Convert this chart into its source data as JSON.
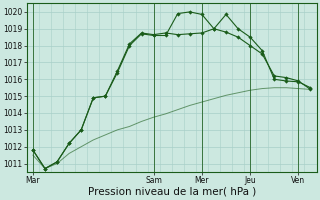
{
  "title": "",
  "xlabel": "Pression niveau de la mer( hPa )",
  "background_color": "#cce8e0",
  "grid_color": "#a8cfc8",
  "line_color_dark": "#1a5c1a",
  "ylim": [
    1010.5,
    1020.5
  ],
  "yticks": [
    1011,
    1012,
    1013,
    1014,
    1015,
    1016,
    1017,
    1018,
    1019,
    1020
  ],
  "day_labels": [
    "Mar",
    "Sam",
    "Mer",
    "Jeu",
    "Ven"
  ],
  "day_x_positions": [
    0,
    10,
    14,
    18,
    22
  ],
  "xlim": [
    -0.5,
    23.5
  ],
  "series1_x": [
    0,
    1,
    2,
    3,
    4,
    5,
    6,
    7,
    8,
    9,
    10,
    11,
    12,
    13,
    14,
    15,
    16,
    17,
    18,
    19,
    20,
    21,
    22,
    23
  ],
  "series1_y": [
    1011.8,
    1010.7,
    1011.1,
    1012.2,
    1013.0,
    1014.9,
    1015.0,
    1016.5,
    1018.1,
    1018.75,
    1018.65,
    1018.75,
    1018.65,
    1018.7,
    1018.75,
    1019.0,
    1019.85,
    1019.0,
    1018.5,
    1017.7,
    1016.0,
    1015.9,
    1015.85,
    1015.5
  ],
  "series2_x": [
    0,
    1,
    2,
    3,
    4,
    5,
    6,
    7,
    8,
    9,
    10,
    11,
    12,
    13,
    14,
    15,
    16,
    17,
    18,
    19,
    20,
    21,
    22,
    23
  ],
  "series2_y": [
    1011.8,
    1010.7,
    1011.1,
    1012.2,
    1013.0,
    1014.9,
    1015.0,
    1016.4,
    1018.0,
    1018.7,
    1018.6,
    1018.6,
    1019.9,
    1020.0,
    1019.85,
    1019.0,
    1018.8,
    1018.5,
    1018.0,
    1017.5,
    1016.2,
    1016.1,
    1015.9,
    1015.4
  ],
  "series3_x": [
    0,
    1,
    2,
    3,
    4,
    5,
    6,
    7,
    8,
    9,
    10,
    11,
    12,
    13,
    14,
    15,
    16,
    17,
    18,
    19,
    20,
    21,
    22,
    23
  ],
  "series3_y": [
    1011.5,
    1010.7,
    1011.0,
    1011.6,
    1012.0,
    1012.4,
    1012.7,
    1013.0,
    1013.2,
    1013.5,
    1013.75,
    1013.95,
    1014.2,
    1014.45,
    1014.65,
    1014.85,
    1015.05,
    1015.2,
    1015.35,
    1015.45,
    1015.5,
    1015.5,
    1015.45,
    1015.4
  ],
  "tick_label_fontsize": 5.5,
  "xlabel_fontsize": 7.5
}
